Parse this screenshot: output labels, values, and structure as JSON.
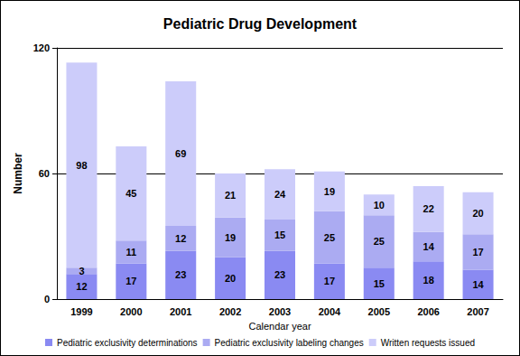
{
  "chart_data": {
    "type": "bar",
    "title": "Pediatric Drug Development",
    "x_label": "Calendar year",
    "y_label": "Number",
    "categories": [
      "1999",
      "2000",
      "2001",
      "2002",
      "2003",
      "2004",
      "2005",
      "2006",
      "2007"
    ],
    "series": [
      {
        "name": "Pediatric exclusivity determinations",
        "color": "#8a8af2",
        "values": [
          12,
          17,
          23,
          20,
          23,
          17,
          15,
          18,
          14
        ]
      },
      {
        "name": "Pediatric exclusivity labeling changes",
        "color": "#ababf2",
        "values": [
          3,
          11,
          12,
          19,
          15,
          25,
          25,
          14,
          17
        ]
      },
      {
        "name": "Written requests issued",
        "color": "#ccccfa",
        "values": [
          98,
          45,
          69,
          21,
          24,
          19,
          10,
          22,
          20
        ]
      }
    ],
    "ylim": [
      0,
      120
    ],
    "yticks": [
      0,
      60,
      120
    ],
    "stacked": true,
    "data_labels": true,
    "grid": true,
    "legend": "bottom"
  }
}
